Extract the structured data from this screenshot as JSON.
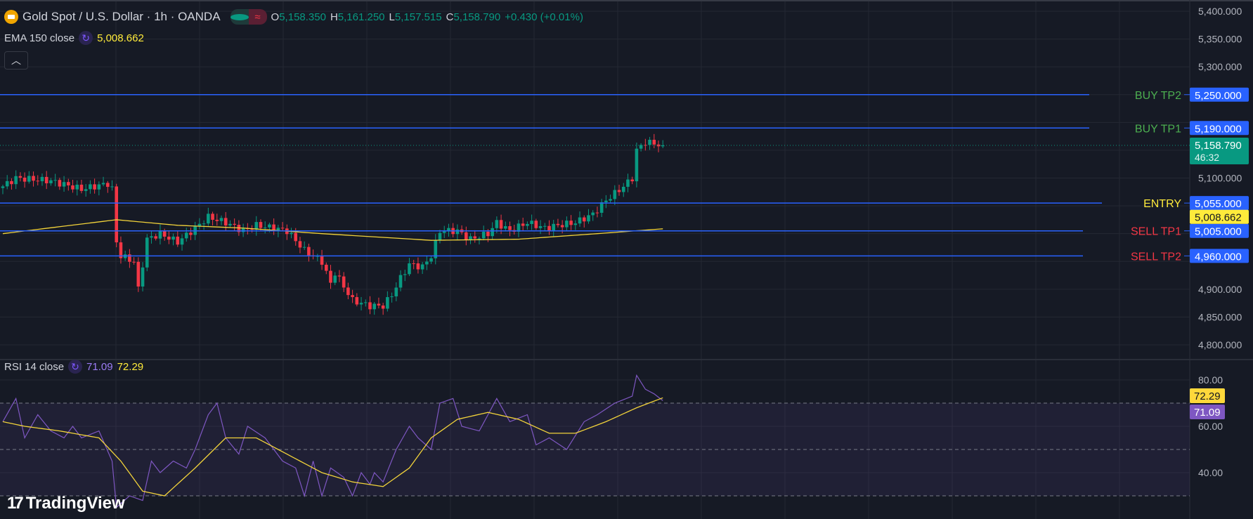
{
  "header": {
    "symbol": "Gold Spot / U.S. Dollar · 1h · OANDA",
    "o_label": "O",
    "o": "5,158.350",
    "h_label": "H",
    "h": "5,161.250",
    "l_label": "L",
    "l": "5,157.515",
    "c_label": "C",
    "c": "5,158.790",
    "change": "+0.430 (+0.01%)"
  },
  "ema_legend": {
    "label": "EMA 150 close",
    "value": "5,008.662"
  },
  "rsi_legend": {
    "label": "RSI 14 close",
    "value": "71.09",
    "ma_value": "72.29"
  },
  "collapse_icon": "chevron-up-icon",
  "logo": "TradingView",
  "colors": {
    "up": "#089981",
    "down": "#f23645",
    "ema": "#f2d33a",
    "rsi": "#7e57c2",
    "level_line": "#2962ff",
    "bg": "#161a25"
  },
  "chart_data": [
    {
      "type": "candlestick",
      "title": "Gold Spot / U.S. Dollar 1h",
      "ylim": [
        4780,
        5410
      ],
      "yticks": [
        5400,
        5350,
        5300,
        5250,
        5200,
        5150,
        5100,
        5050,
        5000,
        4950,
        4900,
        4850,
        4800
      ],
      "ytick_labels": [
        "5,400.000",
        "5,350.000",
        "5,300.000",
        "",
        "",
        "",
        "5,100.000",
        "",
        "",
        "",
        "4,900.000",
        "4,850.000",
        "4,800.000"
      ],
      "bars": 152,
      "close_path": [
        [
          0,
          5085
        ],
        [
          3,
          5100
        ],
        [
          11,
          5095
        ],
        [
          18,
          5080
        ],
        [
          24,
          5090
        ],
        [
          25,
          5080
        ],
        [
          26,
          4985
        ],
        [
          27,
          4960
        ],
        [
          30,
          4950
        ],
        [
          31,
          4900
        ],
        [
          33,
          4990
        ],
        [
          36,
          5000
        ],
        [
          40,
          4985
        ],
        [
          44,
          5010
        ],
        [
          47,
          5030
        ],
        [
          51,
          5020
        ],
        [
          55,
          5005
        ],
        [
          58,
          5015
        ],
        [
          62,
          5010
        ],
        [
          65,
          5005
        ],
        [
          69,
          4970
        ],
        [
          73,
          4950
        ],
        [
          75,
          4910
        ],
        [
          76,
          4930
        ],
        [
          80,
          4880
        ],
        [
          84,
          4870
        ],
        [
          87,
          4870
        ],
        [
          89,
          4890
        ],
        [
          91,
          4920
        ],
        [
          93,
          4945
        ],
        [
          96,
          4940
        ],
        [
          98,
          4960
        ],
        [
          100,
          5005
        ],
        [
          104,
          5005
        ],
        [
          107,
          4990
        ],
        [
          111,
          5000
        ],
        [
          113,
          5020
        ],
        [
          116,
          5005
        ],
        [
          120,
          5020
        ],
        [
          124,
          5010
        ],
        [
          127,
          5015
        ],
        [
          131,
          5020
        ],
        [
          135,
          5035
        ],
        [
          138,
          5060
        ],
        [
          142,
          5085
        ],
        [
          144,
          5100
        ],
        [
          145,
          5150
        ],
        [
          147,
          5165
        ],
        [
          151,
          5158.79
        ]
      ],
      "ema": {
        "name": "EMA 150 close",
        "path": [
          [
            0,
            5000
          ],
          [
            26,
            5025
          ],
          [
            40,
            5015
          ],
          [
            55,
            5010
          ],
          [
            73,
            5000
          ],
          [
            98,
            4988
          ],
          [
            118,
            4990
          ],
          [
            136,
            5000
          ],
          [
            151,
            5008.662
          ]
        ]
      },
      "levels": [
        {
          "label": "BUY TP2",
          "price": 5250,
          "tag": "5,250.000",
          "color": "#4caf50"
        },
        {
          "label": "BUY TP1",
          "price": 5190,
          "tag": "5,190.000",
          "color": "#4caf50"
        },
        {
          "label": "ENTRY",
          "price": 5055,
          "tag": "5,055.000",
          "color": "#ffeb3b"
        },
        {
          "label": "SELL TP1",
          "price": 5005,
          "tag": "5,005.000",
          "color": "#f23645"
        },
        {
          "label": "SELL TP2",
          "price": 4960,
          "tag": "4,960.000",
          "color": "#f23645"
        }
      ],
      "last_price": {
        "price": 5158.79,
        "tag": "5,158.790",
        "countdown": "46:32"
      },
      "ema_tag": {
        "price": 5008.662,
        "tag": "5,008.662"
      }
    },
    {
      "type": "line",
      "title": "RSI 14 close",
      "ylim": [
        28,
        82
      ],
      "yticks": [
        80,
        60,
        40
      ],
      "ytick_labels": [
        "80.00",
        "60.00",
        "40.00"
      ],
      "bands": [
        70,
        50,
        30
      ],
      "rsi": {
        "name": "RSI",
        "path": [
          [
            0,
            62
          ],
          [
            3,
            72
          ],
          [
            5,
            55
          ],
          [
            8,
            65
          ],
          [
            11,
            58
          ],
          [
            14,
            55
          ],
          [
            16,
            60
          ],
          [
            18,
            55
          ],
          [
            22,
            58
          ],
          [
            25,
            45
          ],
          [
            26,
            25
          ],
          [
            29,
            30
          ],
          [
            32,
            28
          ],
          [
            34,
            45
          ],
          [
            36,
            40
          ],
          [
            39,
            45
          ],
          [
            42,
            42
          ],
          [
            44,
            50
          ],
          [
            47,
            65
          ],
          [
            49,
            70
          ],
          [
            51,
            55
          ],
          [
            54,
            48
          ],
          [
            56,
            60
          ],
          [
            60,
            55
          ],
          [
            64,
            45
          ],
          [
            67,
            42
          ],
          [
            69,
            30
          ],
          [
            71,
            45
          ],
          [
            73,
            30
          ],
          [
            75,
            42
          ],
          [
            78,
            38
          ],
          [
            80,
            30
          ],
          [
            82,
            40
          ],
          [
            84,
            35
          ],
          [
            85,
            40
          ],
          [
            87,
            36
          ],
          [
            90,
            50
          ],
          [
            93,
            60
          ],
          [
            95,
            55
          ],
          [
            98,
            50
          ],
          [
            100,
            70
          ],
          [
            103,
            72
          ],
          [
            105,
            60
          ],
          [
            109,
            58
          ],
          [
            113,
            72
          ],
          [
            116,
            62
          ],
          [
            120,
            65
          ],
          [
            122,
            52
          ],
          [
            125,
            55
          ],
          [
            129,
            50
          ],
          [
            133,
            62
          ],
          [
            136,
            65
          ],
          [
            140,
            70
          ],
          [
            144,
            73
          ],
          [
            145,
            82
          ],
          [
            147,
            76
          ],
          [
            149,
            74
          ],
          [
            151,
            71.09
          ]
        ],
        "tag": "71.09"
      },
      "ma": {
        "name": "RSI MA",
        "path": [
          [
            0,
            62
          ],
          [
            5,
            60
          ],
          [
            13,
            58
          ],
          [
            22,
            55
          ],
          [
            27,
            45
          ],
          [
            32,
            32
          ],
          [
            37,
            30
          ],
          [
            44,
            42
          ],
          [
            51,
            55
          ],
          [
            58,
            55
          ],
          [
            65,
            48
          ],
          [
            73,
            40
          ],
          [
            80,
            36
          ],
          [
            87,
            34
          ],
          [
            93,
            42
          ],
          [
            98,
            55
          ],
          [
            104,
            63
          ],
          [
            111,
            66
          ],
          [
            118,
            63
          ],
          [
            125,
            57
          ],
          [
            131,
            57
          ],
          [
            138,
            62
          ],
          [
            145,
            68
          ],
          [
            151,
            72.29
          ]
        ],
        "tag": "72.29"
      }
    }
  ]
}
